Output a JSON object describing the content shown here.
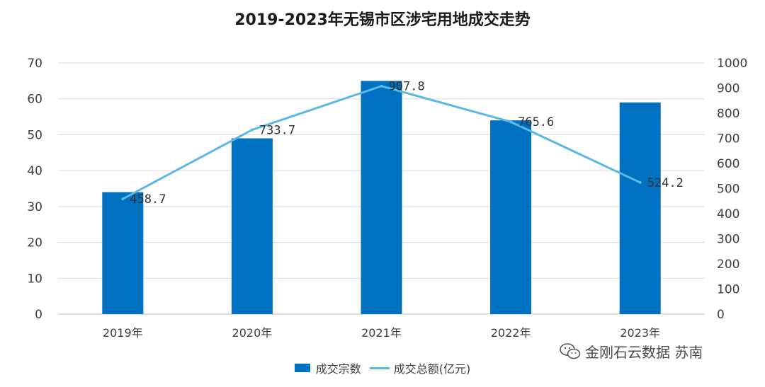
{
  "chart_data": {
    "type": "bar",
    "title": "2019-2023年无锡市区涉宅用地成交走势",
    "categories": [
      "2019年",
      "2020年",
      "2021年",
      "2022年",
      "2023年"
    ],
    "series": [
      {
        "name": "成交宗数",
        "type": "bar",
        "axis": "left",
        "values": [
          34,
          49,
          65,
          54,
          59
        ]
      },
      {
        "name": "成交总额(亿元)",
        "type": "line",
        "axis": "right",
        "values": [
          458.7,
          733.7,
          907.8,
          765.6,
          524.2
        ],
        "labels": [
          "458.7",
          "733.7",
          "907.8",
          "765.6",
          "524.2"
        ]
      }
    ],
    "y_left": {
      "min": 0,
      "max": 70,
      "step": 10
    },
    "y_right": {
      "min": 0,
      "max": 1000,
      "step": 100
    },
    "grid": true,
    "legend_position": "bottom"
  },
  "colors": {
    "bar": "#0070c0",
    "line": "#5bb8e6",
    "grid": "#d9d9d9"
  },
  "watermark": {
    "icon": "wechat-icon",
    "text": "金刚石云数据 苏南"
  }
}
